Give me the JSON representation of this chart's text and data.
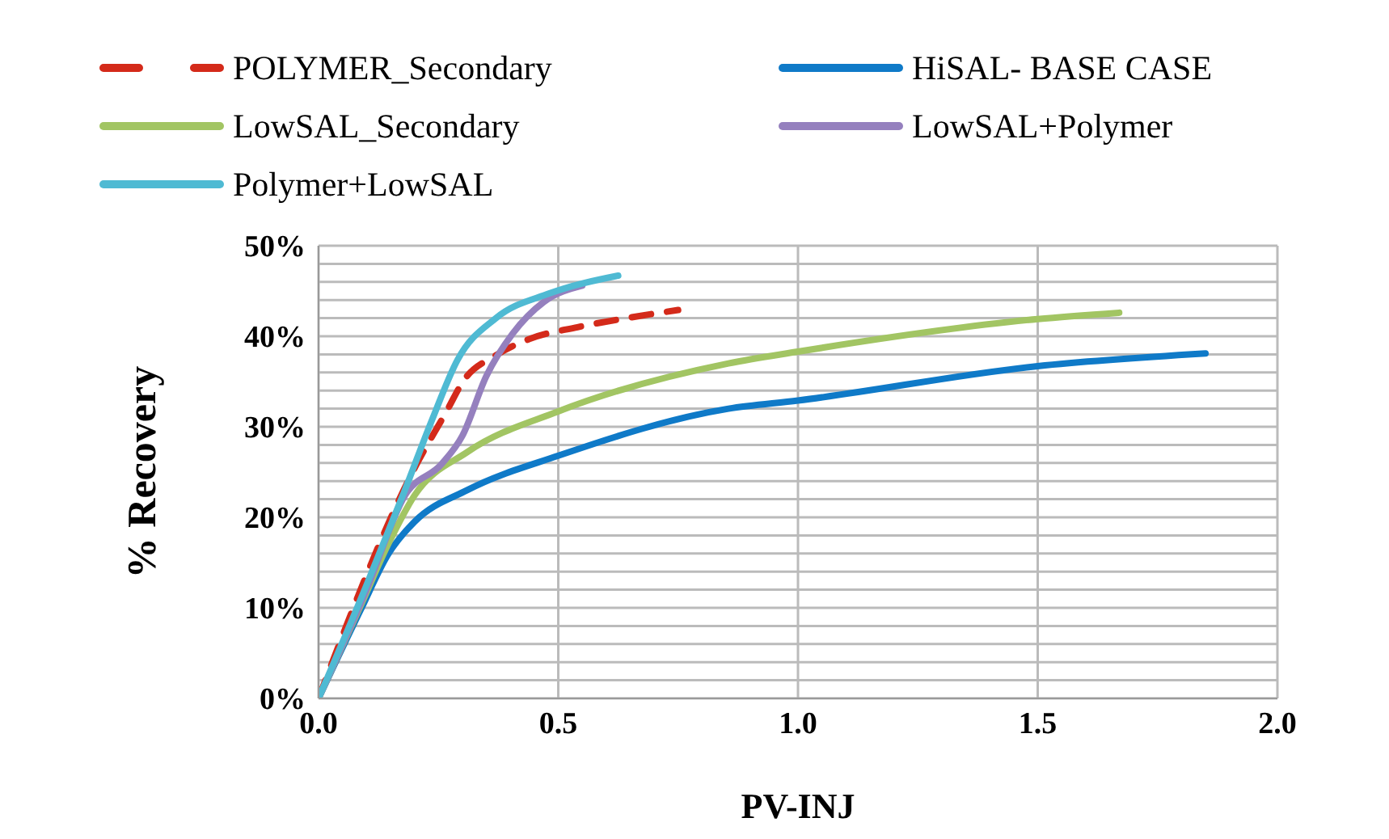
{
  "chart_data": {
    "type": "line",
    "xlabel": "PV-INJ",
    "ylabel": "% Recovery",
    "xlim": [
      0,
      2
    ],
    "ylim": [
      0,
      50
    ],
    "xticks": [
      {
        "value": 0,
        "label": "0.0"
      },
      {
        "value": 0.5,
        "label": "0.5"
      },
      {
        "value": 1,
        "label": "1.0"
      },
      {
        "value": 1.5,
        "label": "1.5"
      },
      {
        "value": 2,
        "label": "2.0"
      }
    ],
    "yticks": [
      {
        "value": 0,
        "label": "0%"
      },
      {
        "value": 2,
        "label": null
      },
      {
        "value": 4,
        "label": null
      },
      {
        "value": 6,
        "label": null
      },
      {
        "value": 8,
        "label": null
      },
      {
        "value": 10,
        "label": "10%"
      },
      {
        "value": 12,
        "label": null
      },
      {
        "value": 14,
        "label": null
      },
      {
        "value": 16,
        "label": null
      },
      {
        "value": 18,
        "label": null
      },
      {
        "value": 20,
        "label": "20%"
      },
      {
        "value": 22,
        "label": null
      },
      {
        "value": 24,
        "label": null
      },
      {
        "value": 26,
        "label": null
      },
      {
        "value": 28,
        "label": null
      },
      {
        "value": 30,
        "label": "30%"
      },
      {
        "value": 32,
        "label": null
      },
      {
        "value": 34,
        "label": null
      },
      {
        "value": 36,
        "label": null
      },
      {
        "value": 38,
        "label": null
      },
      {
        "value": 40,
        "label": "40%"
      },
      {
        "value": 42,
        "label": null
      },
      {
        "value": 44,
        "label": null
      },
      {
        "value": 46,
        "label": null
      },
      {
        "value": 48,
        "label": null
      },
      {
        "value": 50,
        "label": "50%"
      }
    ],
    "grid": true,
    "legend": "top",
    "marker": "none",
    "series": [
      {
        "name": "POLYMER_Secondary",
        "color": "#d42a1a",
        "line_style": "dashed",
        "x": [
          0,
          0.2,
          0.27,
          0.3,
          0.37,
          0.44,
          0.54,
          0.62,
          0.75
        ],
        "values": [
          0,
          25.4,
          32,
          34.9,
          37.9,
          39.7,
          41,
          41.8,
          42.9
        ]
      },
      {
        "name": "HiSAL- BASE CASE",
        "color": "#0f7ac8",
        "x": [
          0,
          0.088,
          0.145,
          0.2,
          0.31,
          0.5,
          0.855,
          1,
          1.5,
          1.85
        ],
        "values": [
          0,
          9.8,
          15.9,
          19.5,
          23,
          26.8,
          32,
          32.9,
          36.7,
          38.1
        ]
      },
      {
        "name": "LowSAL_Secondary",
        "color": "#a2c563",
        "x": [
          0,
          0.09,
          0.145,
          0.2,
          0.31,
          0.5,
          0.855,
          1,
          1.5,
          1.67
        ],
        "values": [
          0,
          10.5,
          17,
          22.4,
          27.2,
          31.7,
          37,
          38.3,
          41.9,
          42.6
        ]
      },
      {
        "name": "LowSAL+Polymer",
        "color": "#9580be",
        "x": [
          0,
          0.1,
          0.18,
          0.257,
          0.3,
          0.35,
          0.405,
          0.47,
          0.55
        ],
        "values": [
          0,
          12,
          22.4,
          25.9,
          29,
          35.6,
          40.3,
          43.8,
          45.6
        ]
      },
      {
        "name": "Polymer+LowSAL",
        "color": "#4fbad3",
        "x": [
          0,
          0.1,
          0.18,
          0.237,
          0.29,
          0.37,
          0.48,
          0.625
        ],
        "values": [
          0,
          12.5,
          23,
          30.8,
          37.4,
          42,
          44.7,
          46.7
        ]
      }
    ]
  }
}
